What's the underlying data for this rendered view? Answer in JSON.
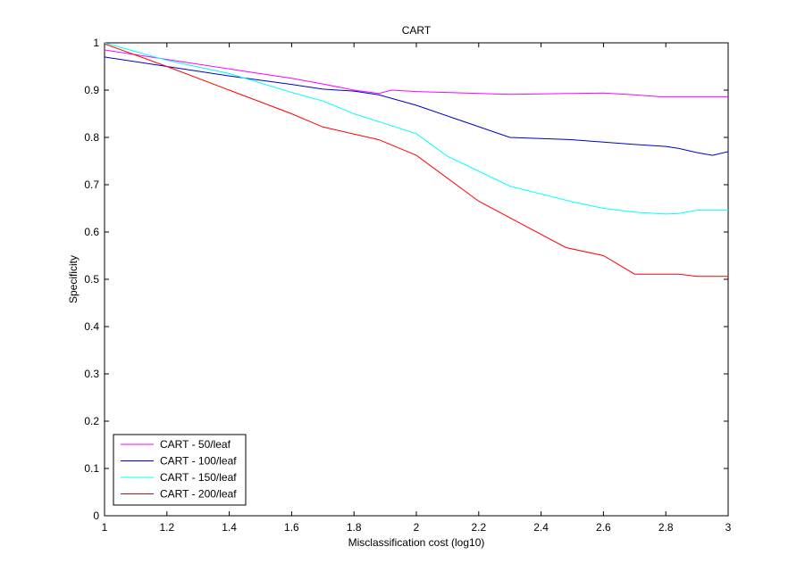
{
  "chart_data": {
    "type": "line",
    "title": "CART",
    "xlabel": "Misclassification cost (log10)",
    "ylabel": "Specificity",
    "xlim": [
      1,
      3
    ],
    "ylim": [
      0,
      1
    ],
    "x_ticks": [
      1,
      1.2,
      1.4,
      1.6,
      1.8,
      2,
      2.2,
      2.4,
      2.6,
      2.8,
      3
    ],
    "x_tick_labels": [
      "1",
      "1.2",
      "1.4",
      "1.6",
      "1.8",
      "2",
      "2.2",
      "2.4",
      "2.6",
      "2.8",
      "3"
    ],
    "y_ticks": [
      0,
      0.1,
      0.2,
      0.3,
      0.4,
      0.5,
      0.6,
      0.7,
      0.8,
      0.9,
      1
    ],
    "y_tick_labels": [
      "0",
      "0.1",
      "0.2",
      "0.3",
      "0.4",
      "0.5",
      "0.6",
      "0.7",
      "0.8",
      "0.9",
      "1"
    ],
    "grid": false,
    "legend_position": "bottom-left",
    "series": [
      {
        "name": "CART - 50/leaf",
        "color": "#ff00ff",
        "x": [
          1,
          1.2,
          1.4,
          1.6,
          1.7,
          1.8,
          1.88,
          1.92,
          2.0,
          2.3,
          2.5,
          2.6,
          2.7,
          2.78,
          3.0
        ],
        "y": [
          0.985,
          0.965,
          0.945,
          0.925,
          0.913,
          0.9,
          0.893,
          0.9,
          0.897,
          0.891,
          0.893,
          0.894,
          0.89,
          0.886,
          0.886
        ]
      },
      {
        "name": "CART - 100/leaf",
        "color": "#0000cc",
        "x": [
          1,
          1.2,
          1.4,
          1.6,
          1.7,
          1.8,
          1.88,
          2.0,
          2.3,
          2.5,
          2.6,
          2.7,
          2.8,
          2.84,
          2.9,
          2.95,
          3.0
        ],
        "y": [
          0.97,
          0.95,
          0.93,
          0.912,
          0.902,
          0.898,
          0.89,
          0.868,
          0.8,
          0.795,
          0.79,
          0.785,
          0.781,
          0.777,
          0.768,
          0.762,
          0.77
        ]
      },
      {
        "name": "CART - 150/leaf",
        "color": "#00ffff",
        "x": [
          1,
          1.2,
          1.4,
          1.6,
          1.7,
          1.8,
          2.0,
          2.1,
          2.3,
          2.5,
          2.6,
          2.7,
          2.8,
          2.84,
          2.9,
          3.0
        ],
        "y": [
          1.0,
          0.963,
          0.935,
          0.895,
          0.877,
          0.85,
          0.808,
          0.76,
          0.697,
          0.664,
          0.65,
          0.642,
          0.638,
          0.639,
          0.646,
          0.646
        ]
      },
      {
        "name": "CART - 200/leaf",
        "color": "#ff0000",
        "x": [
          1,
          1.2,
          1.4,
          1.6,
          1.7,
          1.88,
          2.0,
          2.2,
          2.48,
          2.6,
          2.7,
          2.84,
          2.9,
          3.0
        ],
        "y": [
          0.998,
          0.95,
          0.9,
          0.85,
          0.822,
          0.795,
          0.762,
          0.665,
          0.567,
          0.55,
          0.511,
          0.511,
          0.506,
          0.506
        ]
      }
    ]
  }
}
